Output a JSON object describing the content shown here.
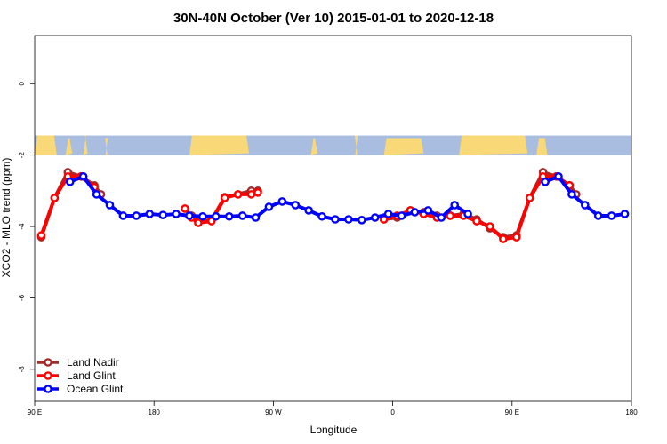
{
  "chart_data": {
    "type": "line",
    "title": "30N-40N October (Ver 10)   2015-01-01 to 2020-12-18",
    "xlabel": "Longitude",
    "ylabel": "XCO2 - MLO trend (ppm)",
    "xlim": [
      -90,
      180
    ],
    "ylim": [
      -8.9,
      1.35
    ],
    "x_ticks": [
      {
        "value": -90,
        "label": "90 E"
      },
      {
        "value": -36,
        "label": "180"
      },
      {
        "value": 18,
        "label": "90 W"
      },
      {
        "value": 72,
        "label": "0"
      },
      {
        "value": 126,
        "label": "90 E"
      },
      {
        "value": 180,
        "label": "180"
      }
    ],
    "y_ticks": [
      {
        "value": 0,
        "label": "0"
      },
      {
        "value": -2,
        "label": "-2"
      },
      {
        "value": -4,
        "label": "-4"
      },
      {
        "value": -6,
        "label": "-6"
      },
      {
        "value": -8,
        "label": "-8"
      }
    ],
    "map_strip": {
      "ymin": -2.0,
      "ymax": -1.45,
      "ocean_color": "#a9bde0",
      "land_color": "#f9d877"
    },
    "legend": {
      "position": "bottom-left"
    },
    "series": [
      {
        "name": "Land Nadir",
        "color": "#a52a2a",
        "points": [
          [
            -87,
            -4.3
          ],
          [
            -81,
            -3.2
          ],
          [
            -75,
            -2.48
          ],
          [
            -69,
            -2.6
          ],
          [
            -63,
            -2.85
          ],
          [
            -60,
            -3.1
          ],
          [
            -19,
            -3.7
          ],
          [
            -16,
            -3.85
          ],
          [
            -10,
            -3.82
          ],
          [
            -4,
            -3.18
          ],
          [
            2,
            -3.1
          ],
          [
            8,
            -3.0
          ],
          [
            11,
            -3.0
          ],
          [
            68,
            -3.8
          ],
          [
            74,
            -3.75
          ],
          [
            80,
            -3.55
          ],
          [
            86,
            -3.6
          ],
          [
            92,
            -3.7
          ],
          [
            98,
            -3.7
          ],
          [
            104,
            -3.65
          ],
          [
            110,
            -3.8
          ],
          [
            116,
            -4.05
          ],
          [
            122,
            -4.3
          ],
          [
            128,
            -4.25
          ],
          [
            134,
            -3.2
          ],
          [
            140,
            -2.48
          ],
          [
            146,
            -2.6
          ],
          [
            152,
            -2.85
          ],
          [
            155,
            -3.1
          ]
        ]
      },
      {
        "name": "Land Glint",
        "color": "#ff0000",
        "points": [
          [
            -87,
            -4.25
          ],
          [
            -81,
            -3.2
          ],
          [
            -75,
            -2.6
          ],
          [
            -69,
            -2.6
          ],
          [
            -63,
            -2.9
          ],
          [
            -22,
            -3.5
          ],
          [
            -19,
            -3.75
          ],
          [
            -16,
            -3.9
          ],
          [
            -10,
            -3.85
          ],
          [
            -4,
            -3.2
          ],
          [
            2,
            -3.1
          ],
          [
            8,
            -3.1
          ],
          [
            11,
            -3.05
          ],
          [
            68,
            -3.8
          ],
          [
            74,
            -3.7
          ],
          [
            80,
            -3.55
          ],
          [
            86,
            -3.65
          ],
          [
            92,
            -3.75
          ],
          [
            98,
            -3.7
          ],
          [
            104,
            -3.7
          ],
          [
            110,
            -3.85
          ],
          [
            116,
            -4.0
          ],
          [
            122,
            -4.35
          ],
          [
            128,
            -4.3
          ],
          [
            134,
            -3.2
          ],
          [
            140,
            -2.6
          ],
          [
            146,
            -2.6
          ],
          [
            152,
            -2.85
          ]
        ]
      },
      {
        "name": "Ocean Glint",
        "color": "#0000ff",
        "points": [
          [
            -74,
            -2.75
          ],
          [
            -68,
            -2.6
          ],
          [
            -62,
            -3.1
          ],
          [
            -56,
            -3.4
          ],
          [
            -50,
            -3.7
          ],
          [
            -44,
            -3.7
          ],
          [
            -38,
            -3.65
          ],
          [
            -32,
            -3.68
          ],
          [
            -26,
            -3.65
          ],
          [
            -20,
            -3.7
          ],
          [
            -14,
            -3.72
          ],
          [
            -8,
            -3.72
          ],
          [
            -2,
            -3.72
          ],
          [
            4,
            -3.7
          ],
          [
            10,
            -3.75
          ],
          [
            16,
            -3.45
          ],
          [
            22,
            -3.3
          ],
          [
            28,
            -3.4
          ],
          [
            34,
            -3.55
          ],
          [
            40,
            -3.72
          ],
          [
            46,
            -3.8
          ],
          [
            52,
            -3.8
          ],
          [
            58,
            -3.82
          ],
          [
            64,
            -3.75
          ],
          [
            70,
            -3.65
          ],
          [
            76,
            -3.7
          ],
          [
            82,
            -3.6
          ],
          [
            88,
            -3.55
          ],
          [
            94,
            -3.75
          ],
          [
            100,
            -3.4
          ],
          [
            106,
            -3.65
          ],
          [
            141,
            -2.75
          ],
          [
            147,
            -2.6
          ],
          [
            153,
            -3.1
          ],
          [
            159,
            -3.4
          ],
          [
            165,
            -3.7
          ],
          [
            171,
            -3.7
          ],
          [
            177,
            -3.65
          ]
        ]
      }
    ]
  }
}
